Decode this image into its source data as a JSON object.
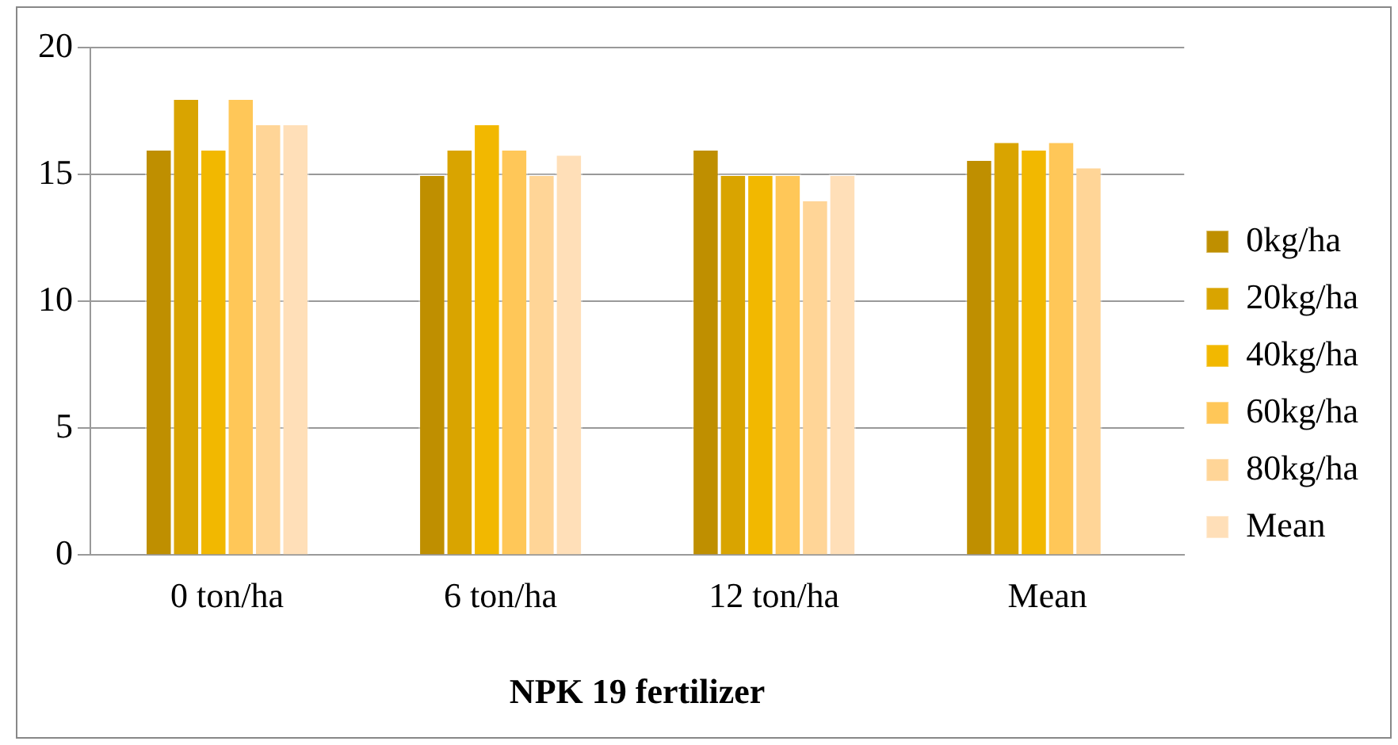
{
  "chart_data": {
    "type": "bar",
    "xlabel": "NPK 19 fertilizer",
    "categories": [
      "0 ton/ha",
      "6 ton/ha",
      "12 ton/ha",
      "Mean"
    ],
    "series": [
      {
        "name": "0kg/ha",
        "color": "#bf8f00",
        "values": [
          16,
          15,
          16,
          15.6
        ]
      },
      {
        "name": "20kg/ha",
        "color": "#d9a400",
        "values": [
          18,
          16,
          15,
          16.3
        ]
      },
      {
        "name": "40kg/ha",
        "color": "#f2b800",
        "values": [
          16,
          17,
          15,
          16
        ]
      },
      {
        "name": "60kg/ha",
        "color": "#ffc758",
        "values": [
          18,
          16,
          15,
          16.3
        ]
      },
      {
        "name": "80kg/ha",
        "color": "#ffd597",
        "values": [
          17,
          15,
          14,
          15.3
        ]
      },
      {
        "name": "Mean",
        "color": "#ffdfb8",
        "values": [
          17,
          15.8,
          15,
          null
        ]
      }
    ],
    "ylim": [
      0,
      20
    ],
    "yticks": [
      0,
      5,
      10,
      15,
      20
    ],
    "grid": "y",
    "legend": "right"
  }
}
